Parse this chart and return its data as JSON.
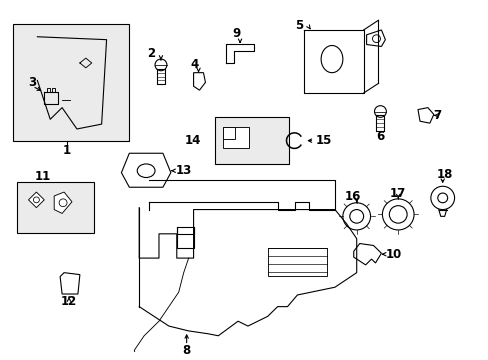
{
  "background_color": "#ffffff",
  "lw": 0.8,
  "fs": 8.5
}
